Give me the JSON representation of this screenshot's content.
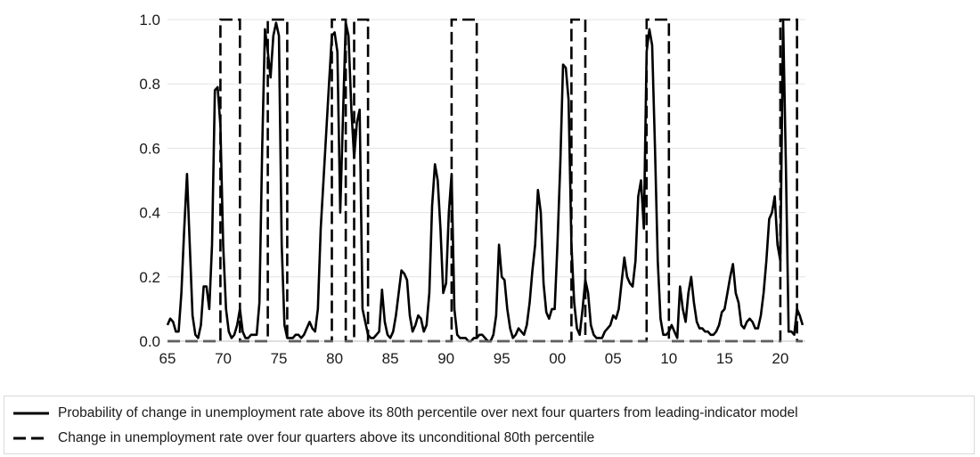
{
  "chart_data": {
    "type": "line",
    "title": "",
    "xlabel": "",
    "ylabel": "",
    "xlim": [
      1965,
      2022.25
    ],
    "ylim": [
      0,
      1.0
    ],
    "y_ticks": [
      0,
      0.2,
      0.4,
      0.6,
      0.8,
      1.0
    ],
    "y_tick_labels": [
      "0.0",
      "0.2",
      "0.4",
      "0.6",
      "0.8",
      "1.0"
    ],
    "x_ticks": [
      1965,
      1970,
      1975,
      1980,
      1985,
      1990,
      1995,
      2000,
      2005,
      2010,
      2015,
      2020
    ],
    "x_tick_labels": [
      "65",
      "70",
      "75",
      "80",
      "85",
      "90",
      "95",
      "00",
      "05",
      "10",
      "15",
      "20"
    ],
    "grid": "horizontal",
    "legend_position": "bottom",
    "series": [
      {
        "name": "Probability of change in unemployment rate above its 80th percentile over next four quarters from leading-indicator model",
        "style": "solid",
        "color": "#000000",
        "points": [
          [
            1965.0,
            0.05
          ],
          [
            1965.25,
            0.07
          ],
          [
            1965.5,
            0.06
          ],
          [
            1965.75,
            0.03
          ],
          [
            1966.0,
            0.03
          ],
          [
            1966.25,
            0.15
          ],
          [
            1966.5,
            0.35
          ],
          [
            1966.75,
            0.52
          ],
          [
            1967.0,
            0.3
          ],
          [
            1967.25,
            0.08
          ],
          [
            1967.5,
            0.02
          ],
          [
            1967.75,
            0.01
          ],
          [
            1968.0,
            0.05
          ],
          [
            1968.25,
            0.17
          ],
          [
            1968.5,
            0.17
          ],
          [
            1968.75,
            0.1
          ],
          [
            1969.0,
            0.3
          ],
          [
            1969.25,
            0.78
          ],
          [
            1969.5,
            0.79
          ],
          [
            1969.75,
            0.67
          ],
          [
            1970.0,
            0.3
          ],
          [
            1970.25,
            0.1
          ],
          [
            1970.5,
            0.03
          ],
          [
            1970.75,
            0.01
          ],
          [
            1971.0,
            0.02
          ],
          [
            1971.25,
            0.05
          ],
          [
            1971.5,
            0.1
          ],
          [
            1971.75,
            0.03
          ],
          [
            1972.0,
            0.01
          ],
          [
            1972.25,
            0.01
          ],
          [
            1972.5,
            0.02
          ],
          [
            1972.75,
            0.02
          ],
          [
            1973.0,
            0.02
          ],
          [
            1973.25,
            0.12
          ],
          [
            1973.5,
            0.6
          ],
          [
            1973.75,
            0.97
          ],
          [
            1974.0,
            0.9
          ],
          [
            1974.25,
            0.82
          ],
          [
            1974.5,
            0.95
          ],
          [
            1974.75,
            0.99
          ],
          [
            1975.0,
            0.95
          ],
          [
            1975.25,
            0.3
          ],
          [
            1975.5,
            0.05
          ],
          [
            1975.75,
            0.01
          ],
          [
            1976.0,
            0.01
          ],
          [
            1976.25,
            0.01
          ],
          [
            1976.5,
            0.02
          ],
          [
            1976.75,
            0.02
          ],
          [
            1977.0,
            0.01
          ],
          [
            1977.25,
            0.02
          ],
          [
            1977.5,
            0.04
          ],
          [
            1977.75,
            0.06
          ],
          [
            1978.0,
            0.04
          ],
          [
            1978.25,
            0.03
          ],
          [
            1978.5,
            0.1
          ],
          [
            1978.75,
            0.35
          ],
          [
            1979.0,
            0.5
          ],
          [
            1979.25,
            0.65
          ],
          [
            1979.5,
            0.8
          ],
          [
            1979.75,
            0.95
          ],
          [
            1980.0,
            0.96
          ],
          [
            1980.25,
            0.9
          ],
          [
            1980.5,
            0.4
          ],
          [
            1980.75,
            0.7
          ],
          [
            1981.0,
            0.99
          ],
          [
            1981.25,
            0.95
          ],
          [
            1981.5,
            0.72
          ],
          [
            1981.75,
            0.57
          ],
          [
            1982.0,
            0.68
          ],
          [
            1982.25,
            0.72
          ],
          [
            1982.5,
            0.1
          ],
          [
            1982.75,
            0.06
          ],
          [
            1983.0,
            0.02
          ],
          [
            1983.25,
            0.01
          ],
          [
            1983.5,
            0.01
          ],
          [
            1983.75,
            0.02
          ],
          [
            1984.0,
            0.03
          ],
          [
            1984.25,
            0.16
          ],
          [
            1984.5,
            0.06
          ],
          [
            1984.75,
            0.02
          ],
          [
            1985.0,
            0.01
          ],
          [
            1985.25,
            0.03
          ],
          [
            1985.5,
            0.08
          ],
          [
            1985.75,
            0.15
          ],
          [
            1986.0,
            0.22
          ],
          [
            1986.25,
            0.21
          ],
          [
            1986.5,
            0.19
          ],
          [
            1986.75,
            0.08
          ],
          [
            1987.0,
            0.03
          ],
          [
            1987.25,
            0.05
          ],
          [
            1987.5,
            0.08
          ],
          [
            1987.75,
            0.07
          ],
          [
            1988.0,
            0.03
          ],
          [
            1988.25,
            0.05
          ],
          [
            1988.5,
            0.15
          ],
          [
            1988.75,
            0.42
          ],
          [
            1989.0,
            0.55
          ],
          [
            1989.25,
            0.5
          ],
          [
            1989.5,
            0.35
          ],
          [
            1989.75,
            0.15
          ],
          [
            1990.0,
            0.18
          ],
          [
            1990.25,
            0.4
          ],
          [
            1990.5,
            0.52
          ],
          [
            1990.75,
            0.1
          ],
          [
            1991.0,
            0.02
          ],
          [
            1991.25,
            0.01
          ],
          [
            1991.5,
            0.01
          ],
          [
            1991.75,
            0.01
          ],
          [
            1992.0,
            0.0
          ],
          [
            1992.25,
            0.0
          ],
          [
            1992.5,
            0.01
          ],
          [
            1992.75,
            0.01
          ],
          [
            1993.0,
            0.02
          ],
          [
            1993.25,
            0.02
          ],
          [
            1993.5,
            0.01
          ],
          [
            1993.75,
            0.0
          ],
          [
            1994.0,
            0.0
          ],
          [
            1994.25,
            0.02
          ],
          [
            1994.5,
            0.08
          ],
          [
            1994.75,
            0.3
          ],
          [
            1995.0,
            0.2
          ],
          [
            1995.25,
            0.19
          ],
          [
            1995.5,
            0.1
          ],
          [
            1995.75,
            0.04
          ],
          [
            1996.0,
            0.01
          ],
          [
            1996.25,
            0.02
          ],
          [
            1996.5,
            0.04
          ],
          [
            1996.75,
            0.03
          ],
          [
            1997.0,
            0.02
          ],
          [
            1997.25,
            0.05
          ],
          [
            1997.5,
            0.12
          ],
          [
            1997.75,
            0.22
          ],
          [
            1998.0,
            0.3
          ],
          [
            1998.25,
            0.47
          ],
          [
            1998.5,
            0.4
          ],
          [
            1998.75,
            0.18
          ],
          [
            1999.0,
            0.09
          ],
          [
            1999.25,
            0.07
          ],
          [
            1999.5,
            0.1
          ],
          [
            1999.75,
            0.1
          ],
          [
            2000.0,
            0.3
          ],
          [
            2000.25,
            0.55
          ],
          [
            2000.5,
            0.86
          ],
          [
            2000.75,
            0.85
          ],
          [
            2001.0,
            0.75
          ],
          [
            2001.25,
            0.3
          ],
          [
            2001.5,
            0.12
          ],
          [
            2001.75,
            0.04
          ],
          [
            2002.0,
            0.02
          ],
          [
            2002.25,
            0.1
          ],
          [
            2002.5,
            0.19
          ],
          [
            2002.75,
            0.15
          ],
          [
            2003.0,
            0.05
          ],
          [
            2003.25,
            0.02
          ],
          [
            2003.5,
            0.01
          ],
          [
            2003.75,
            0.01
          ],
          [
            2004.0,
            0.01
          ],
          [
            2004.25,
            0.03
          ],
          [
            2004.5,
            0.04
          ],
          [
            2004.75,
            0.05
          ],
          [
            2005.0,
            0.08
          ],
          [
            2005.25,
            0.07
          ],
          [
            2005.5,
            0.1
          ],
          [
            2005.75,
            0.18
          ],
          [
            2006.0,
            0.26
          ],
          [
            2006.25,
            0.2
          ],
          [
            2006.5,
            0.18
          ],
          [
            2006.75,
            0.17
          ],
          [
            2007.0,
            0.25
          ],
          [
            2007.25,
            0.45
          ],
          [
            2007.5,
            0.5
          ],
          [
            2007.75,
            0.35
          ],
          [
            2008.0,
            0.9
          ],
          [
            2008.25,
            0.97
          ],
          [
            2008.5,
            0.92
          ],
          [
            2008.75,
            0.6
          ],
          [
            2009.0,
            0.25
          ],
          [
            2009.25,
            0.07
          ],
          [
            2009.5,
            0.02
          ],
          [
            2009.75,
            0.02
          ],
          [
            2010.0,
            0.03
          ],
          [
            2010.25,
            0.05
          ],
          [
            2010.5,
            0.03
          ],
          [
            2010.75,
            0.01
          ],
          [
            2011.0,
            0.17
          ],
          [
            2011.25,
            0.1
          ],
          [
            2011.5,
            0.06
          ],
          [
            2011.75,
            0.15
          ],
          [
            2012.0,
            0.2
          ],
          [
            2012.25,
            0.12
          ],
          [
            2012.5,
            0.06
          ],
          [
            2012.75,
            0.04
          ],
          [
            2013.0,
            0.04
          ],
          [
            2013.25,
            0.03
          ],
          [
            2013.5,
            0.03
          ],
          [
            2013.75,
            0.02
          ],
          [
            2014.0,
            0.02
          ],
          [
            2014.25,
            0.03
          ],
          [
            2014.5,
            0.05
          ],
          [
            2014.75,
            0.09
          ],
          [
            2015.0,
            0.1
          ],
          [
            2015.25,
            0.15
          ],
          [
            2015.5,
            0.2
          ],
          [
            2015.75,
            0.24
          ],
          [
            2016.0,
            0.15
          ],
          [
            2016.25,
            0.12
          ],
          [
            2016.5,
            0.05
          ],
          [
            2016.75,
            0.04
          ],
          [
            2017.0,
            0.06
          ],
          [
            2017.25,
            0.07
          ],
          [
            2017.5,
            0.06
          ],
          [
            2017.75,
            0.04
          ],
          [
            2018.0,
            0.04
          ],
          [
            2018.25,
            0.08
          ],
          [
            2018.5,
            0.15
          ],
          [
            2018.75,
            0.25
          ],
          [
            2019.0,
            0.38
          ],
          [
            2019.25,
            0.4
          ],
          [
            2019.5,
            0.45
          ],
          [
            2019.75,
            0.3
          ],
          [
            2020.0,
            0.25
          ],
          [
            2020.25,
            1.0
          ],
          [
            2020.5,
            0.55
          ],
          [
            2020.75,
            0.03
          ],
          [
            2021.0,
            0.03
          ],
          [
            2021.25,
            0.02
          ],
          [
            2021.5,
            0.1
          ],
          [
            2021.75,
            0.08
          ],
          [
            2022.0,
            0.05
          ]
        ]
      },
      {
        "name": "Change in unemployment rate over four quarters above its unconditional 80th percentile",
        "style": "dashed",
        "color": "#000000",
        "x_start": 1965,
        "x_end": 2022,
        "base_value": 0,
        "active_value": 1,
        "active_periods": [
          [
            1969.75,
            1971.5
          ],
          [
            1974.0,
            1975.75
          ],
          [
            1979.75,
            1981.0
          ],
          [
            1981.75,
            1983.0
          ],
          [
            1990.5,
            1992.75
          ],
          [
            2001.25,
            2002.5
          ],
          [
            2008.0,
            2010.0
          ],
          [
            2020.0,
            2021.5
          ]
        ]
      }
    ]
  }
}
